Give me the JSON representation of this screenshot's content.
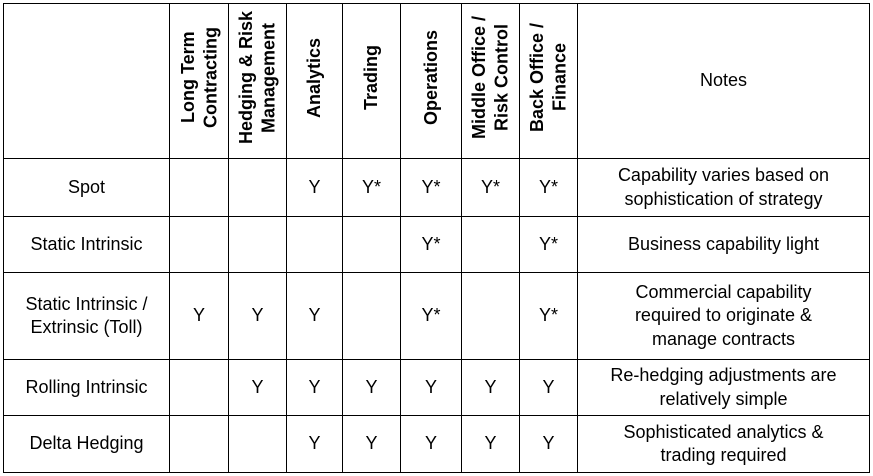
{
  "columns": [
    "Long Term\nContracting",
    "Hedging & Risk\nManagement",
    "Analytics",
    "Trading",
    "Operations",
    "Middle Office /\nRisk Control",
    "Back Office /\nFinance"
  ],
  "notes_header": "Notes",
  "rows": [
    {
      "strategy": "Spot",
      "marks": [
        "",
        "",
        "Y",
        "Y*",
        "Y*",
        "Y*",
        "Y*"
      ],
      "note": "Capability varies based on\nsophistication of strategy"
    },
    {
      "strategy": "Static Intrinsic",
      "marks": [
        "",
        "",
        "",
        "",
        "Y*",
        "",
        "Y*"
      ],
      "note": "Business capability light"
    },
    {
      "strategy": "Static Intrinsic /\nExtrinsic (Toll)",
      "marks": [
        "Y",
        "Y",
        "Y",
        "",
        "Y*",
        "",
        "Y*"
      ],
      "note": "Commercial capability\nrequired to originate &\nmanage contracts"
    },
    {
      "strategy": "Rolling Intrinsic",
      "marks": [
        "",
        "Y",
        "Y",
        "Y",
        "Y",
        "Y",
        "Y"
      ],
      "note": "Re-hedging adjustments are\nrelatively simple"
    },
    {
      "strategy": "Delta Hedging",
      "marks": [
        "",
        "",
        "Y",
        "Y",
        "Y",
        "Y",
        "Y"
      ],
      "note": "Sophisticated analytics &\ntrading required"
    }
  ]
}
